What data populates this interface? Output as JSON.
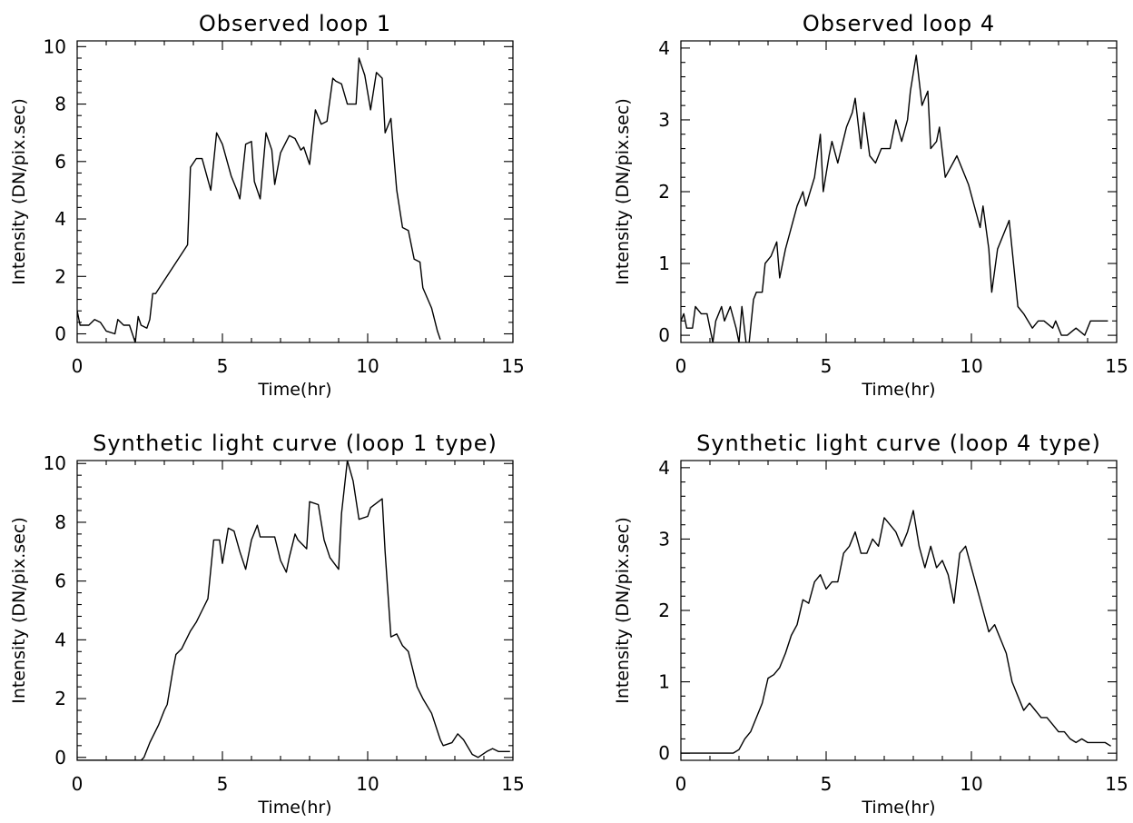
{
  "chart_data": [
    {
      "type": "line",
      "title": "Observed loop 1",
      "xlabel": "Time(hr)",
      "ylabel": "Intensity (DN/pix.sec)",
      "xlim": [
        0,
        15
      ],
      "ylim": [
        -0.3,
        10.2
      ],
      "xticks": [
        0,
        5,
        10,
        15
      ],
      "yticks": [
        0,
        2,
        4,
        6,
        8,
        10
      ],
      "grid": false,
      "x": [
        0,
        0.1,
        0.4,
        0.6,
        0.8,
        1.0,
        1.3,
        1.4,
        1.6,
        1.8,
        1.9,
        2.0,
        2.1,
        2.2,
        2.4,
        2.5,
        2.6,
        2.7,
        3.8,
        3.9,
        4.1,
        4.3,
        4.6,
        4.8,
        5.0,
        5.3,
        5.5,
        5.6,
        5.8,
        6.0,
        6.1,
        6.3,
        6.5,
        6.7,
        6.8,
        7.0,
        7.3,
        7.5,
        7.7,
        7.8,
        8.0,
        8.2,
        8.4,
        8.6,
        8.8,
        8.9,
        9.1,
        9.3,
        9.6,
        9.7,
        9.9,
        10.1,
        10.3,
        10.5,
        10.6,
        10.8,
        10.9,
        11.0,
        11.2,
        11.4,
        11.6,
        11.8,
        11.9,
        12.2,
        12.4,
        12.5
      ],
      "y": [
        0.8,
        0.3,
        0.3,
        0.5,
        0.4,
        0.1,
        0,
        0.5,
        0.3,
        0.3,
        0,
        -0.3,
        0.6,
        0.3,
        0.2,
        0.5,
        1.4,
        1.4,
        3.1,
        5.8,
        6.1,
        6.1,
        5.0,
        7.0,
        6.6,
        5.5,
        5.0,
        4.7,
        6.6,
        6.7,
        5.3,
        4.7,
        7.0,
        6.4,
        5.2,
        6.3,
        6.9,
        6.8,
        6.4,
        6.5,
        5.9,
        7.8,
        7.3,
        7.4,
        8.9,
        8.8,
        8.7,
        8.0,
        8.0,
        9.6,
        9.0,
        7.8,
        9.1,
        8.9,
        7.0,
        7.5,
        6.2,
        5.0,
        3.7,
        3.6,
        2.6,
        2.5,
        1.6,
        0.9,
        0.1,
        -0.2
      ]
    },
    {
      "type": "line",
      "title": "Observed loop 4",
      "xlabel": "Time(hr)",
      "ylabel": "Intensity (DN/pix.sec)",
      "xlim": [
        0,
        15
      ],
      "ylim": [
        -0.1,
        4.1
      ],
      "xticks": [
        0,
        5,
        10,
        15
      ],
      "yticks": [
        0,
        1,
        2,
        3,
        4
      ],
      "grid": false,
      "x": [
        0,
        0.1,
        0.2,
        0.4,
        0.5,
        0.7,
        0.9,
        1.1,
        1.2,
        1.4,
        1.5,
        1.7,
        1.9,
        2.0,
        2.1,
        2.3,
        2.5,
        2.6,
        2.8,
        2.9,
        3.1,
        3.3,
        3.4,
        3.5,
        3.6,
        4.0,
        4.2,
        4.3,
        4.6,
        4.8,
        4.9,
        5.1,
        5.2,
        5.4,
        5.7,
        5.9,
        6.0,
        6.2,
        6.3,
        6.5,
        6.7,
        6.9,
        7.2,
        7.4,
        7.6,
        7.8,
        7.9,
        8.1,
        8.3,
        8.5,
        8.6,
        8.8,
        8.9,
        9.1,
        9.5,
        9.9,
        10.3,
        10.4,
        10.6,
        10.7,
        10.9,
        11.3,
        11.6,
        11.8,
        12.1,
        12.3,
        12.5,
        12.8,
        12.9,
        13.1,
        13.3,
        13.6,
        13.9,
        14.0,
        14.1,
        14.4,
        14.7
      ],
      "y": [
        0.2,
        0.3,
        0.1,
        0.1,
        0.4,
        0.3,
        0.3,
        -0.1,
        0.2,
        0.4,
        0.2,
        0.4,
        0.1,
        -0.1,
        0.4,
        -0.3,
        0.5,
        0.6,
        0.6,
        1.0,
        1.1,
        1.3,
        0.8,
        1.0,
        1.2,
        1.8,
        2.0,
        1.8,
        2.2,
        2.8,
        2.0,
        2.5,
        2.7,
        2.4,
        2.9,
        3.1,
        3.3,
        2.6,
        3.1,
        2.5,
        2.4,
        2.6,
        2.6,
        3.0,
        2.7,
        3.0,
        3.4,
        3.9,
        3.2,
        3.4,
        2.6,
        2.7,
        2.9,
        2.2,
        2.5,
        2.1,
        1.5,
        1.8,
        1.2,
        0.6,
        1.2,
        1.6,
        0.4,
        0.3,
        0.1,
        0.2,
        0.2,
        0.1,
        0.2,
        0.0,
        0.0,
        0.1,
        0.0,
        0.1,
        0.2,
        0.2,
        0.2
      ]
    },
    {
      "type": "line",
      "title": "Synthetic light curve (loop 1 type)",
      "xlabel": "Time(hr)",
      "ylabel": "Intensity (DN/pix.sec)",
      "xlim": [
        0,
        15
      ],
      "ylim": [
        -0.1,
        10.1
      ],
      "xticks": [
        0,
        5,
        10,
        15
      ],
      "yticks": [
        0,
        2,
        4,
        6,
        8,
        10
      ],
      "grid": false,
      "x": [
        0,
        0.5,
        1.0,
        1.5,
        2.0,
        2.2,
        2.3,
        2.5,
        2.8,
        3.0,
        3.1,
        3.3,
        3.4,
        3.6,
        3.7,
        3.9,
        4.1,
        4.3,
        4.5,
        4.7,
        4.9,
        5.0,
        5.2,
        5.4,
        5.6,
        5.8,
        6.0,
        6.2,
        6.3,
        6.5,
        6.8,
        7.0,
        7.2,
        7.3,
        7.5,
        7.6,
        7.9,
        8.0,
        8.3,
        8.5,
        8.7,
        9.0,
        9.1,
        9.3,
        9.5,
        9.7,
        10.0,
        10.1,
        10.5,
        10.6,
        10.8,
        11.0,
        11.2,
        11.4,
        11.7,
        11.9,
        12.2,
        12.5,
        12.6,
        12.9,
        13.1,
        13.3,
        13.6,
        13.8,
        14.1,
        14.3,
        14.5,
        14.7,
        14.9
      ],
      "y": [
        -0.1,
        -0.1,
        -0.1,
        -0.1,
        -0.1,
        -0.1,
        0.0,
        0.5,
        1.1,
        1.6,
        1.8,
        3.0,
        3.5,
        3.7,
        3.9,
        4.3,
        4.6,
        5.0,
        5.4,
        7.4,
        7.4,
        6.6,
        7.8,
        7.7,
        7.0,
        6.4,
        7.4,
        7.9,
        7.5,
        7.5,
        7.5,
        6.7,
        6.3,
        6.8,
        7.6,
        7.4,
        7.1,
        8.7,
        8.6,
        7.4,
        6.8,
        6.4,
        8.3,
        10.1,
        9.4,
        8.1,
        8.2,
        8.5,
        8.8,
        7.0,
        4.1,
        4.2,
        3.8,
        3.6,
        2.4,
        2.0,
        1.5,
        0.6,
        0.4,
        0.5,
        0.8,
        0.6,
        0.1,
        0.0,
        0.2,
        0.3,
        0.2,
        0.2,
        0.2
      ]
    },
    {
      "type": "line",
      "title": "Synthetic light curve (loop 4 type)",
      "xlabel": "Time(hr)",
      "ylabel": "Intensity (DN/pix.sec)",
      "xlim": [
        0,
        15
      ],
      "ylim": [
        -0.1,
        4.1
      ],
      "xticks": [
        0,
        5,
        10,
        15
      ],
      "yticks": [
        0,
        1,
        2,
        3,
        4
      ],
      "grid": false,
      "x": [
        0,
        0.5,
        1.0,
        1.5,
        1.8,
        2.0,
        2.2,
        2.4,
        2.6,
        2.8,
        3.0,
        3.2,
        3.4,
        3.6,
        3.8,
        4.0,
        4.2,
        4.4,
        4.6,
        4.8,
        5.0,
        5.2,
        5.4,
        5.6,
        5.8,
        6.0,
        6.2,
        6.4,
        6.6,
        6.8,
        7.0,
        7.2,
        7.4,
        7.6,
        7.8,
        8.0,
        8.2,
        8.4,
        8.6,
        8.8,
        9.0,
        9.2,
        9.4,
        9.6,
        9.8,
        10.0,
        10.2,
        10.4,
        10.6,
        10.8,
        11.0,
        11.2,
        11.4,
        11.6,
        11.8,
        12.0,
        12.2,
        12.4,
        12.6,
        12.8,
        13.0,
        13.2,
        13.4,
        13.6,
        13.8,
        14.0,
        14.2,
        14.4,
        14.6,
        14.8
      ],
      "y": [
        0.0,
        0.0,
        0.0,
        0.0,
        0.0,
        0.05,
        0.2,
        0.3,
        0.5,
        0.7,
        1.05,
        1.1,
        1.2,
        1.4,
        1.65,
        1.8,
        2.15,
        2.1,
        2.4,
        2.5,
        2.3,
        2.4,
        2.4,
        2.8,
        2.9,
        3.1,
        2.8,
        2.8,
        3.0,
        2.9,
        3.3,
        3.2,
        3.1,
        2.9,
        3.1,
        3.4,
        2.9,
        2.6,
        2.9,
        2.6,
        2.7,
        2.5,
        2.1,
        2.8,
        2.9,
        2.6,
        2.3,
        2.0,
        1.7,
        1.8,
        1.6,
        1.4,
        1.0,
        0.8,
        0.6,
        0.7,
        0.6,
        0.5,
        0.5,
        0.4,
        0.3,
        0.3,
        0.2,
        0.15,
        0.2,
        0.15,
        0.15,
        0.15,
        0.15,
        0.1
      ]
    }
  ]
}
